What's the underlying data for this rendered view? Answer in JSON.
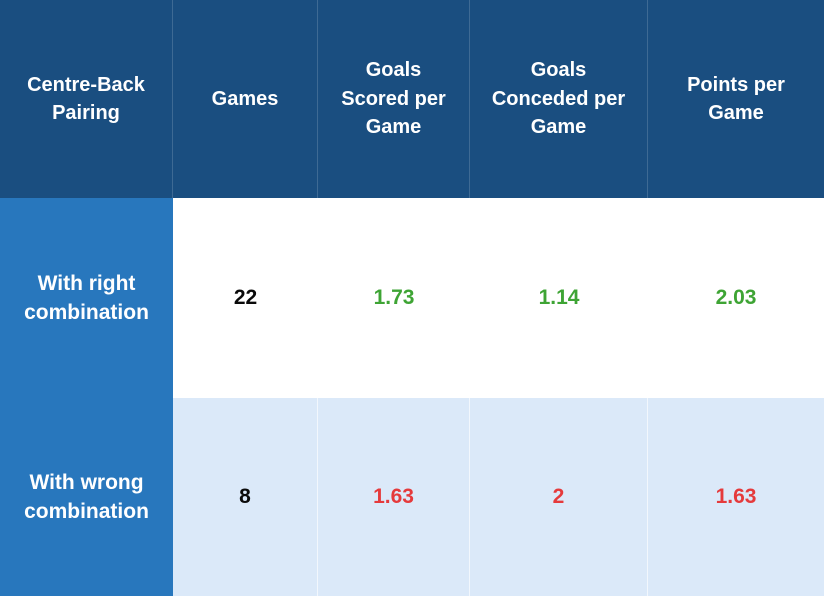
{
  "table": {
    "columns": [
      {
        "label": "Centre-Back Pairing"
      },
      {
        "label": "Games"
      },
      {
        "label": "Goals Scored per Game"
      },
      {
        "label": "Goals Conceded per Game"
      },
      {
        "label": "Points per Game"
      }
    ],
    "rows": [
      {
        "label": "With right combination",
        "games": "22",
        "goals_scored_per_game": "1.73",
        "goals_conceded_per_game": "1.14",
        "points_per_game": "2.03",
        "trend": "positive"
      },
      {
        "label": "With wrong combination",
        "games": "8",
        "goals_scored_per_game": "1.63",
        "goals_conceded_per_game": "2",
        "points_per_game": "1.63",
        "trend": "negative"
      }
    ],
    "colors": {
      "header_bg": "#1a4e80",
      "row_label_bg": "#2877bd",
      "row_alt_bg": "#dbe9f9",
      "positive": "#3ea434",
      "negative": "#e53a3c"
    }
  },
  "chart_data": {
    "type": "table",
    "title": "Centre-Back Pairing performance comparison",
    "columns": [
      "Centre-Back Pairing",
      "Games",
      "Goals Scored per Game",
      "Goals Conceded per Game",
      "Points per Game"
    ],
    "rows": [
      [
        "With right combination",
        22,
        1.73,
        1.14,
        2.03
      ],
      [
        "With wrong combination",
        8,
        1.63,
        2,
        1.63
      ]
    ],
    "layout_hints": {
      "header_style": "dark-blue, white bold text",
      "row_label_column_style": "medium-blue, white bold text",
      "row_1_values_color": "green (positive)",
      "row_2_values_color": "red (negative)",
      "row_2_background": "light blue"
    }
  }
}
